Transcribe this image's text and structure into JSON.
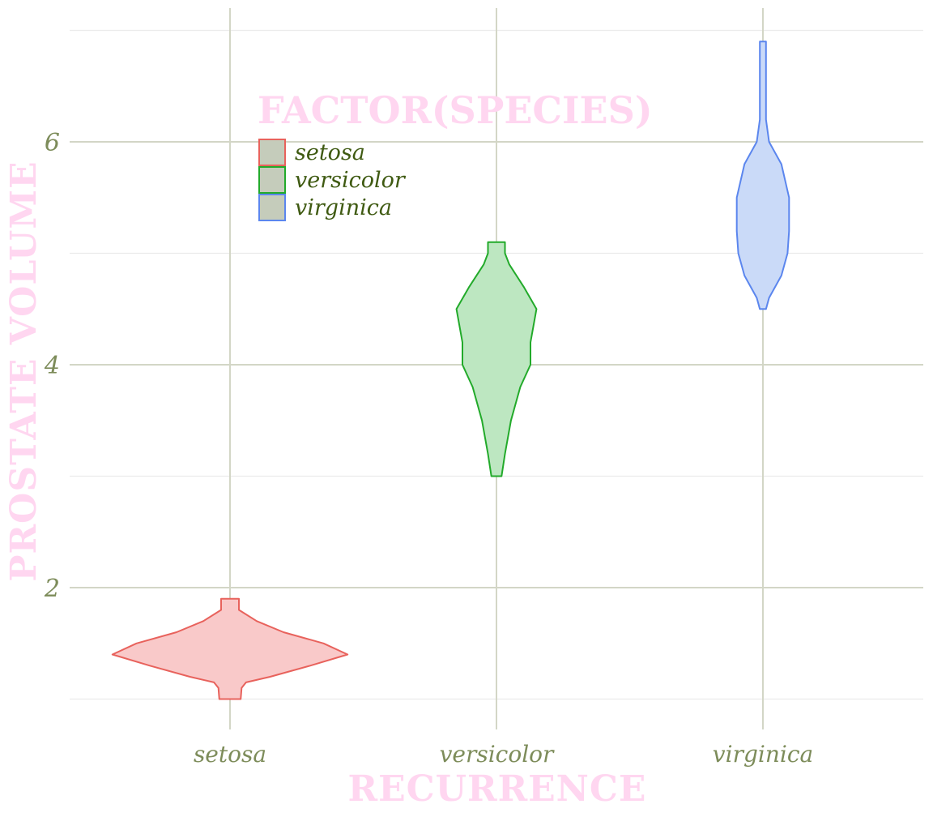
{
  "chart_data": {
    "type": "violin",
    "title": "",
    "xlabel": "Recurrence",
    "ylabel": "Prostate Volume",
    "categories": [
      "setosa",
      "versicolor",
      "virginica"
    ],
    "y_ticks": [
      2,
      4,
      6
    ],
    "ylim": [
      0.9,
      7.0
    ],
    "grid": true,
    "legend": {
      "title": "factor(Species)",
      "placement": "top-left inside",
      "entries": [
        "setosa",
        "versicolor",
        "virginica"
      ]
    },
    "colors": {
      "setosa": {
        "stroke": "#e8625c",
        "fill": "#f9c9c9"
      },
      "versicolor": {
        "stroke": "#22aa2a",
        "fill": "#bde7c1"
      },
      "virginica": {
        "stroke": "#5b86ee",
        "fill": "#cadaf8"
      },
      "legend_key_fill": "#c5ccbb",
      "grid": "#d3d6c6"
    },
    "series": [
      {
        "name": "setosa",
        "min": 1.0,
        "max": 1.9,
        "profile": [
          [
            1.0,
            0.12
          ],
          [
            1.1,
            0.13
          ],
          [
            1.15,
            0.18
          ],
          [
            1.2,
            0.45
          ],
          [
            1.3,
            0.9
          ],
          [
            1.4,
            1.32
          ],
          [
            1.5,
            1.05
          ],
          [
            1.6,
            0.6
          ],
          [
            1.7,
            0.3
          ],
          [
            1.8,
            0.1
          ],
          [
            1.85,
            0.1
          ],
          [
            1.9,
            0.1
          ]
        ]
      },
      {
        "name": "versicolor",
        "min": 3.0,
        "max": 5.1,
        "profile": [
          [
            3.0,
            0.06
          ],
          [
            3.2,
            0.1
          ],
          [
            3.5,
            0.17
          ],
          [
            3.8,
            0.28
          ],
          [
            4.0,
            0.4
          ],
          [
            4.2,
            0.4
          ],
          [
            4.5,
            0.47
          ],
          [
            4.7,
            0.32
          ],
          [
            4.9,
            0.15
          ],
          [
            5.0,
            0.1
          ],
          [
            5.1,
            0.1
          ]
        ]
      },
      {
        "name": "virginica",
        "min": 4.5,
        "max": 6.9,
        "profile": [
          [
            4.5,
            0.02
          ],
          [
            4.6,
            0.04
          ],
          [
            4.8,
            0.12
          ],
          [
            5.0,
            0.16
          ],
          [
            5.2,
            0.17
          ],
          [
            5.5,
            0.17
          ],
          [
            5.8,
            0.12
          ],
          [
            6.0,
            0.04
          ],
          [
            6.2,
            0.02
          ],
          [
            6.4,
            0.02
          ],
          [
            6.6,
            0.02
          ],
          [
            6.8,
            0.02
          ],
          [
            6.9,
            0.02
          ]
        ]
      }
    ]
  }
}
